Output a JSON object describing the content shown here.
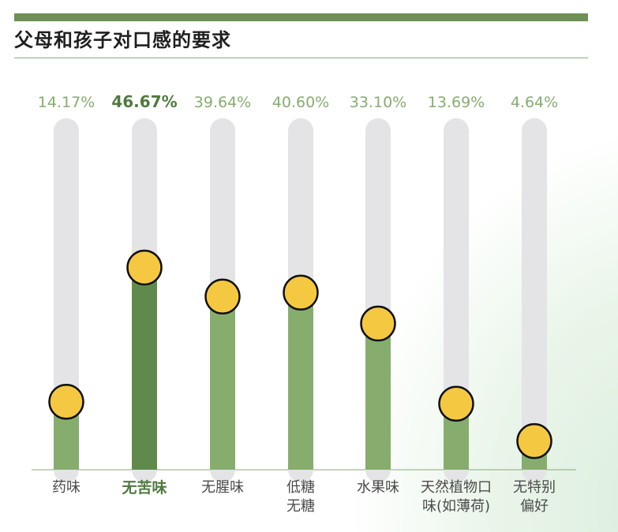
{
  "header": {
    "title": "父母和孩子对口感的要求"
  },
  "colors": {
    "accent_bar": "#6e8f56",
    "bar_fill": "#86ad6e",
    "bar_fill_highlight": "#608a4c",
    "track": "#e4e4e6",
    "marker": "#f5c842",
    "value_text": "#86ad6e",
    "value_text_highlight": "#4f7a3f"
  },
  "chart_data": {
    "type": "bar",
    "title": "父母和孩子对口感的要求",
    "categories": [
      "药味",
      "无苦味",
      "无腥味",
      "低糖\n无糖",
      "水果味",
      "天然植物口\n味(如薄荷)",
      "无特别\n偏好"
    ],
    "values": [
      14.17,
      46.67,
      39.64,
      40.6,
      33.1,
      13.69,
      4.64
    ],
    "value_labels": [
      "14.17%",
      "46.67%",
      "39.64%",
      "40.60%",
      "33.10%",
      "13.69%",
      "4.64%"
    ],
    "highlight_index": 1,
    "ylim": [
      0,
      100
    ],
    "grid": false,
    "legend": "none"
  }
}
